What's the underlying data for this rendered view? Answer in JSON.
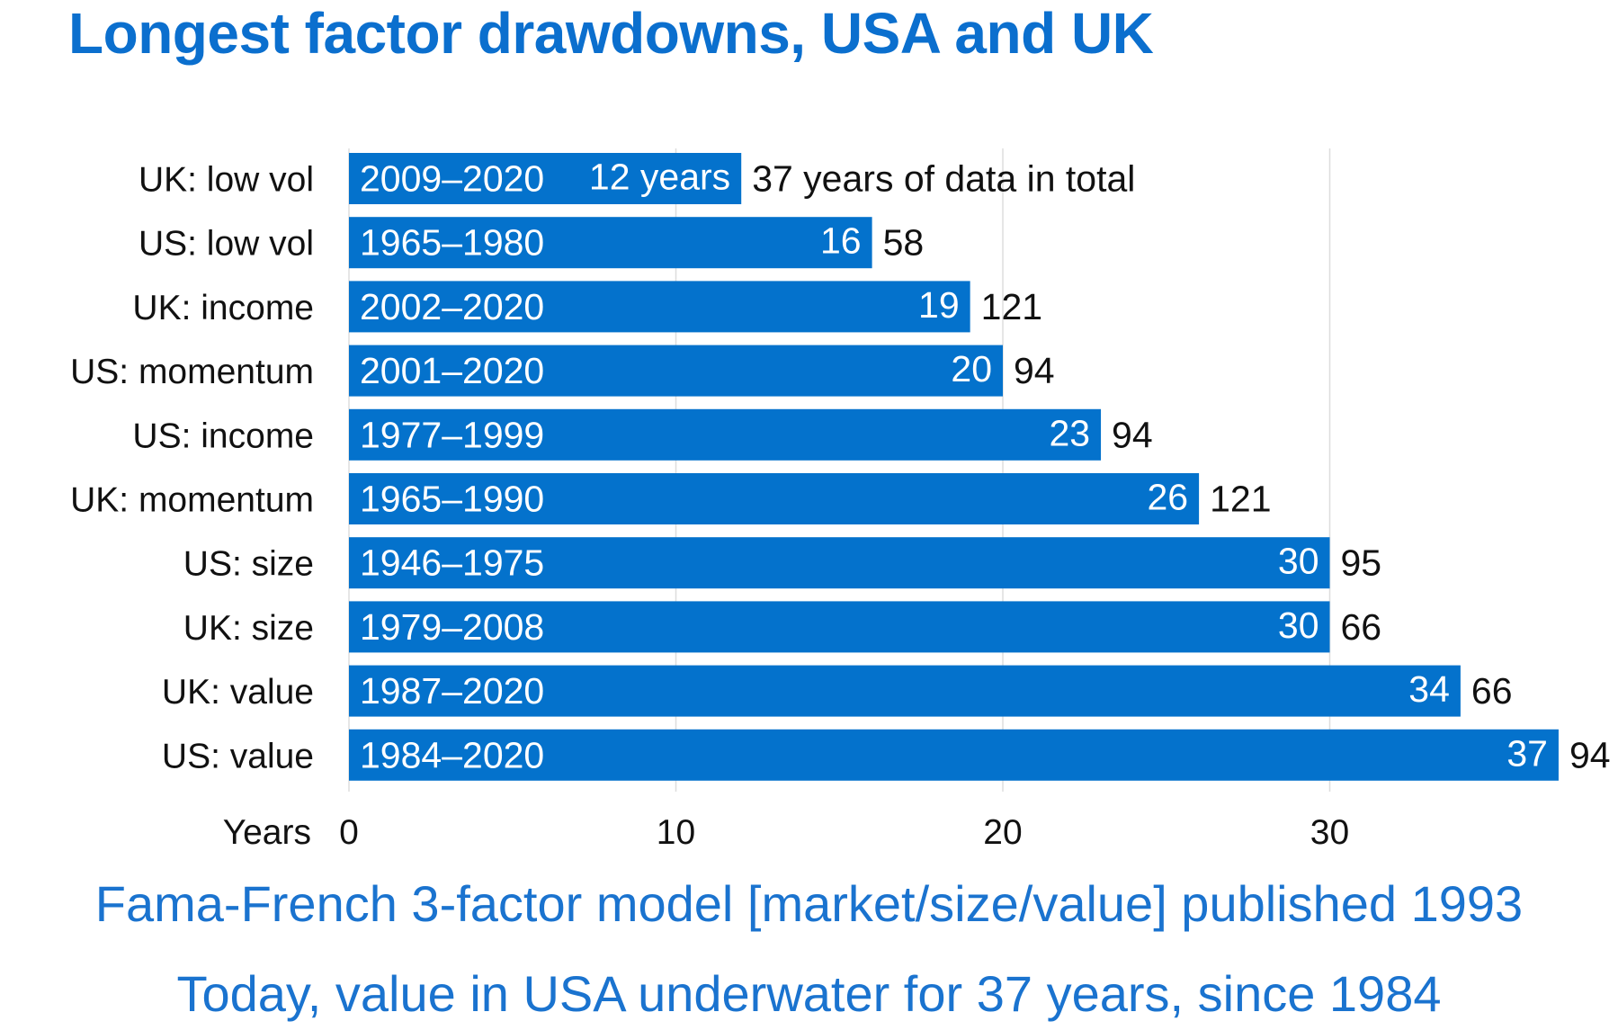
{
  "title": "Longest factor drawdowns, USA and UK",
  "colors": {
    "bar": "#0472cc",
    "accent": "#0b6fce",
    "grid": "#dddddd",
    "text": "#111111"
  },
  "chart_data": {
    "type": "bar",
    "orientation": "horizontal",
    "xlabel": "Years",
    "xlim": [
      0,
      37
    ],
    "xticks": [
      0,
      10,
      20,
      30
    ],
    "grid": true,
    "bars": [
      {
        "label": "UK: low vol",
        "period": "2009–2020",
        "value": 12,
        "value_label": "12 years",
        "data_years": "37 years of data in total"
      },
      {
        "label": "US: low vol",
        "period": "1965–1980",
        "value": 16,
        "value_label": "16",
        "data_years": "58"
      },
      {
        "label": "UK: income",
        "period": "2002–2020",
        "value": 19,
        "value_label": "19",
        "data_years": "121"
      },
      {
        "label": "US: momentum",
        "period": "2001–2020",
        "value": 20,
        "value_label": "20",
        "data_years": "94"
      },
      {
        "label": "US: income",
        "period": "1977–1999",
        "value": 23,
        "value_label": "23",
        "data_years": "94"
      },
      {
        "label": "UK: momentum",
        "period": "1965–1990",
        "value": 26,
        "value_label": "26",
        "data_years": "121"
      },
      {
        "label": "US: size",
        "period": "1946–1975",
        "value": 30,
        "value_label": "30",
        "data_years": "95"
      },
      {
        "label": "UK: size",
        "period": "1979–2008",
        "value": 30,
        "value_label": "30",
        "data_years": "66"
      },
      {
        "label": "UK: value",
        "period": "1987–2020",
        "value": 34,
        "value_label": "34",
        "data_years": "66"
      },
      {
        "label": "US: value",
        "period": "1984–2020",
        "value": 37,
        "value_label": "37",
        "data_years": "94"
      }
    ]
  },
  "notes": {
    "line1": "Fama-French 3-factor model [market/size/value] published 1993",
    "line2": "Today, value in USA underwater for 37 years, since 1984"
  }
}
